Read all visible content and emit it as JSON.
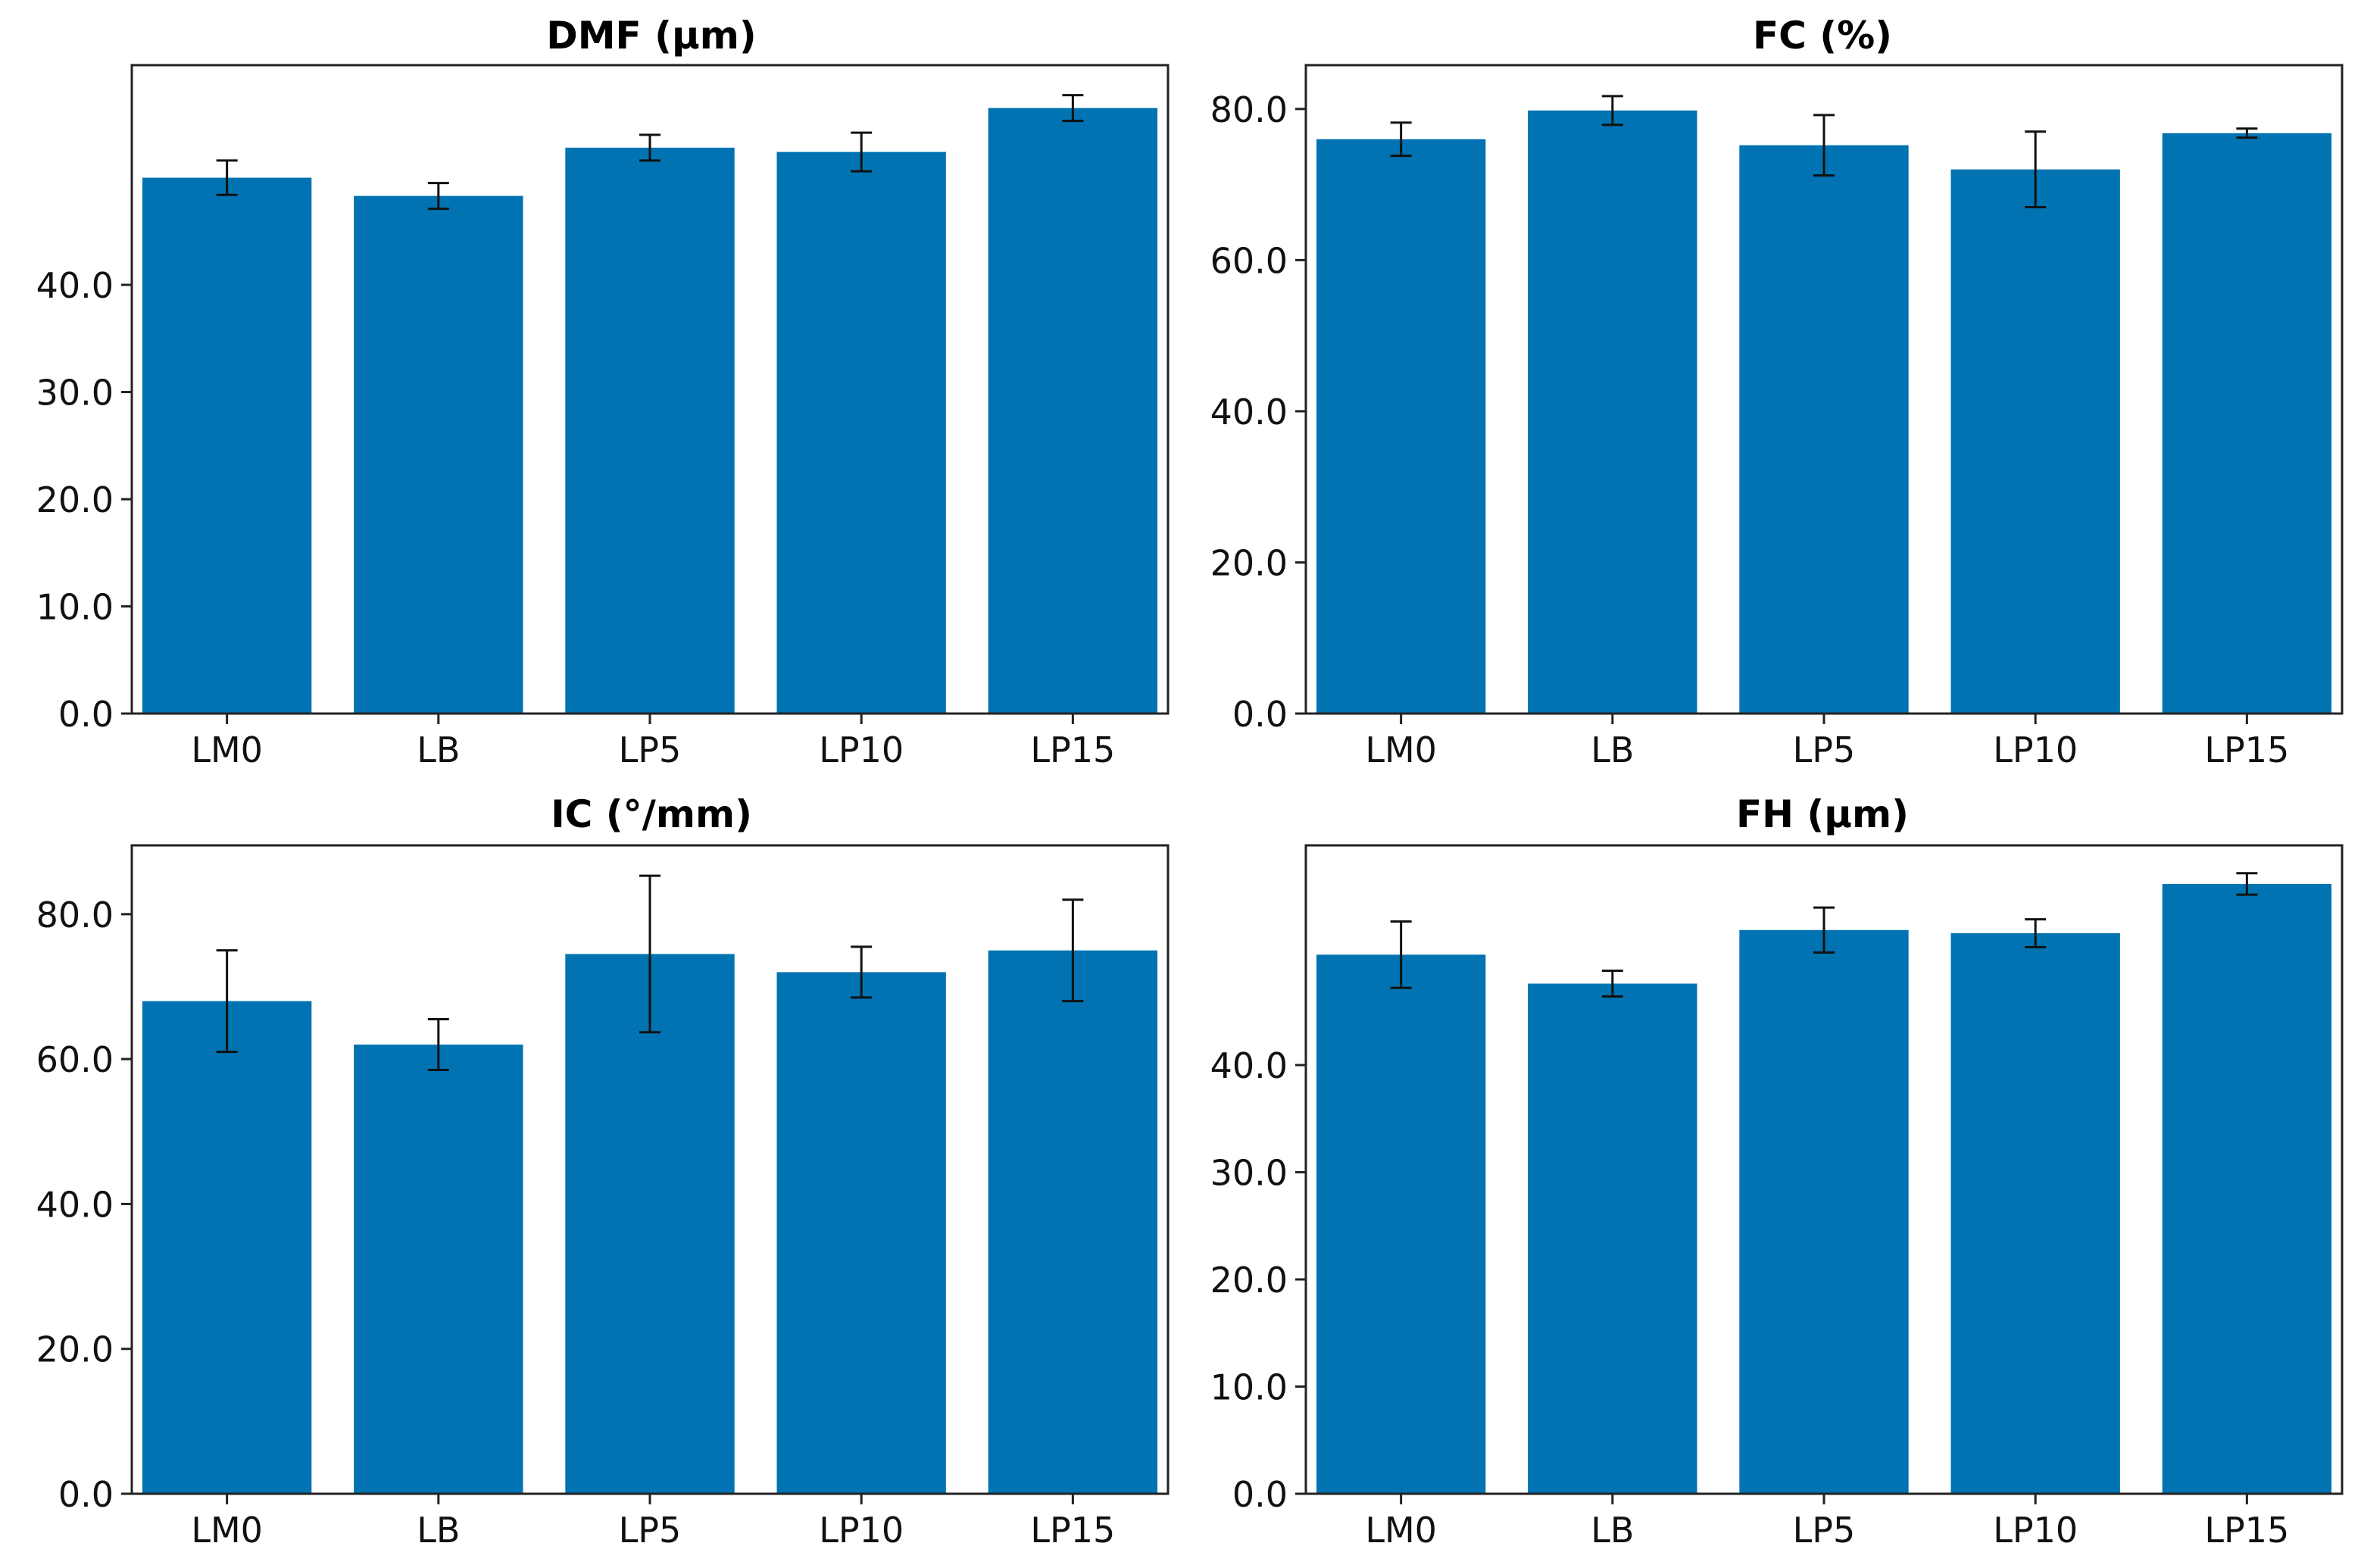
{
  "bar_color": "#0173b2",
  "chart_data": [
    {
      "type": "bar",
      "title": "DMF (µm)",
      "xlabel": "",
      "ylabel": "",
      "categories": [
        "LM0",
        "LB",
        "LP5",
        "LP10",
        "LP15"
      ],
      "values": [
        50.0,
        48.3,
        52.8,
        52.4,
        56.5
      ],
      "errors": [
        1.6,
        1.2,
        1.2,
        1.8,
        1.2
      ],
      "ylim": [
        0,
        60.5
      ],
      "yticks": [
        0,
        10,
        20,
        30,
        40
      ],
      "ytick_labels": [
        "0.0",
        "10.0",
        "20.0",
        "30.0",
        "40.0"
      ]
    },
    {
      "type": "bar",
      "title": "FC (%)",
      "xlabel": "",
      "ylabel": "",
      "categories": [
        "LM0",
        "LB",
        "LP5",
        "LP10",
        "LP15"
      ],
      "values": [
        76.0,
        79.8,
        75.2,
        72.0,
        76.8
      ],
      "errors": [
        2.2,
        1.9,
        4.0,
        5.0,
        0.6
      ],
      "ylim": [
        0,
        85.8
      ],
      "yticks": [
        0,
        20,
        40,
        60,
        80
      ],
      "ytick_labels": [
        "0.0",
        "20.0",
        "40.0",
        "60.0",
        "80.0"
      ]
    },
    {
      "type": "bar",
      "title": "IC (°/mm)",
      "xlabel": "",
      "ylabel": "",
      "categories": [
        "LM0",
        "LB",
        "LP5",
        "LP10",
        "LP15"
      ],
      "values": [
        68.0,
        62.0,
        74.5,
        72.0,
        75.0
      ],
      "errors": [
        7.0,
        3.5,
        10.8,
        3.5,
        7.0
      ],
      "ylim": [
        0,
        89.5
      ],
      "yticks": [
        0,
        20,
        40,
        60,
        80
      ],
      "ytick_labels": [
        "0.0",
        "20.0",
        "40.0",
        "60.0",
        "80.0"
      ]
    },
    {
      "type": "bar",
      "title": "FH (µm)",
      "xlabel": "",
      "ylabel": "",
      "categories": [
        "LM0",
        "LB",
        "LP5",
        "LP10",
        "LP15"
      ],
      "values": [
        50.3,
        47.6,
        52.6,
        52.3,
        56.9
      ],
      "errors": [
        3.1,
        1.2,
        2.1,
        1.3,
        1.0
      ],
      "ylim": [
        0,
        60.5
      ],
      "yticks": [
        0,
        10,
        20,
        30,
        40
      ],
      "ytick_labels": [
        "0.0",
        "10.0",
        "20.0",
        "30.0",
        "40.0"
      ]
    }
  ]
}
